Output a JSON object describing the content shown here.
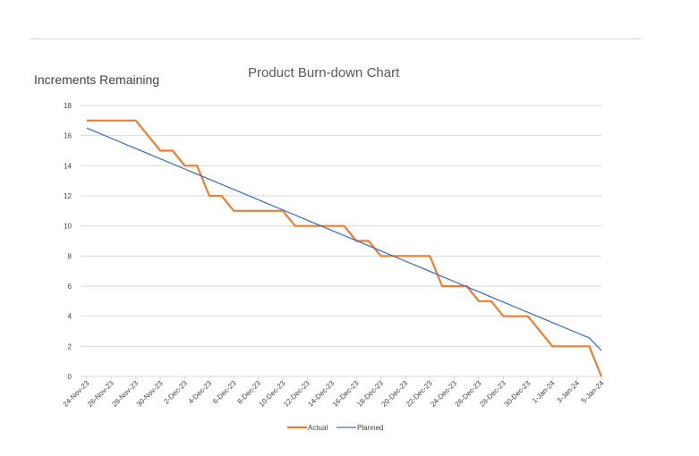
{
  "chart_data": {
    "type": "line",
    "title": "Product Burn-down Chart",
    "ylabel": "Increments Remaining",
    "xlabel": "",
    "ylim": [
      0,
      18
    ],
    "yticks": [
      0,
      2,
      4,
      6,
      8,
      10,
      12,
      14,
      16,
      18
    ],
    "grid": true,
    "legend_position": "bottom",
    "categories": [
      "24-Nov-23",
      "25-Nov-23",
      "26-Nov-23",
      "27-Nov-23",
      "28-Nov-23",
      "29-Nov-23",
      "30-Nov-23",
      "1-Dec-23",
      "2-Dec-23",
      "3-Dec-23",
      "4-Dec-23",
      "5-Dec-23",
      "6-Dec-23",
      "7-Dec-23",
      "8-Dec-23",
      "9-Dec-23",
      "10-Dec-23",
      "11-Dec-23",
      "12-Dec-23",
      "13-Dec-23",
      "14-Dec-23",
      "15-Dec-23",
      "16-Dec-23",
      "17-Dec-23",
      "18-Dec-23",
      "19-Dec-23",
      "20-Dec-23",
      "21-Dec-23",
      "22-Dec-23",
      "23-Dec-23",
      "24-Dec-23",
      "25-Dec-23",
      "26-Dec-23",
      "27-Dec-23",
      "28-Dec-23",
      "29-Dec-23",
      "30-Dec-23",
      "31-Dec-23",
      "1-Jan-24",
      "2-Jan-24",
      "3-Jan-24",
      "4-Jan-24",
      "5-Jan-24"
    ],
    "tick_labels": [
      "24-Nov-23",
      "26-Nov-23",
      "28-Nov-23",
      "30-Nov-23",
      "2-Dec-23",
      "4-Dec-23",
      "6-Dec-23",
      "8-Dec-23",
      "10-Dec-23",
      "12-Dec-23",
      "14-Dec-23",
      "16-Dec-23",
      "18-Dec-23",
      "20-Dec-23",
      "22-Dec-23",
      "24-Dec-23",
      "26-Dec-23",
      "28-Dec-23",
      "30-Dec-23",
      "1-Jan-24",
      "3-Jan-24",
      "5-Jan-24"
    ],
    "series": [
      {
        "name": "Actual",
        "color": "#ed7d31",
        "values": [
          17,
          17,
          17,
          17,
          17,
          16,
          15,
          15,
          14,
          14,
          12,
          12,
          11,
          11,
          11,
          11,
          11,
          10,
          10,
          10,
          10,
          10,
          9,
          9,
          8,
          8,
          8,
          8,
          8,
          6,
          6,
          6,
          5,
          5,
          4,
          4,
          4,
          3,
          2,
          2,
          2,
          2,
          0
        ]
      },
      {
        "name": "Planned",
        "color": "#4472c4",
        "values": [
          16.5,
          16.16,
          15.82,
          15.48,
          15.14,
          14.8,
          14.46,
          14.12,
          13.78,
          13.44,
          13.1,
          12.76,
          12.42,
          12.08,
          11.74,
          11.4,
          11.06,
          10.72,
          10.38,
          10.04,
          9.7,
          9.36,
          9.02,
          8.68,
          8.34,
          8.0,
          7.66,
          7.32,
          6.98,
          6.64,
          6.3,
          5.96,
          5.62,
          5.28,
          4.94,
          4.6,
          4.26,
          3.92,
          3.58,
          3.24,
          2.9,
          2.56,
          1.72
        ]
      }
    ]
  }
}
